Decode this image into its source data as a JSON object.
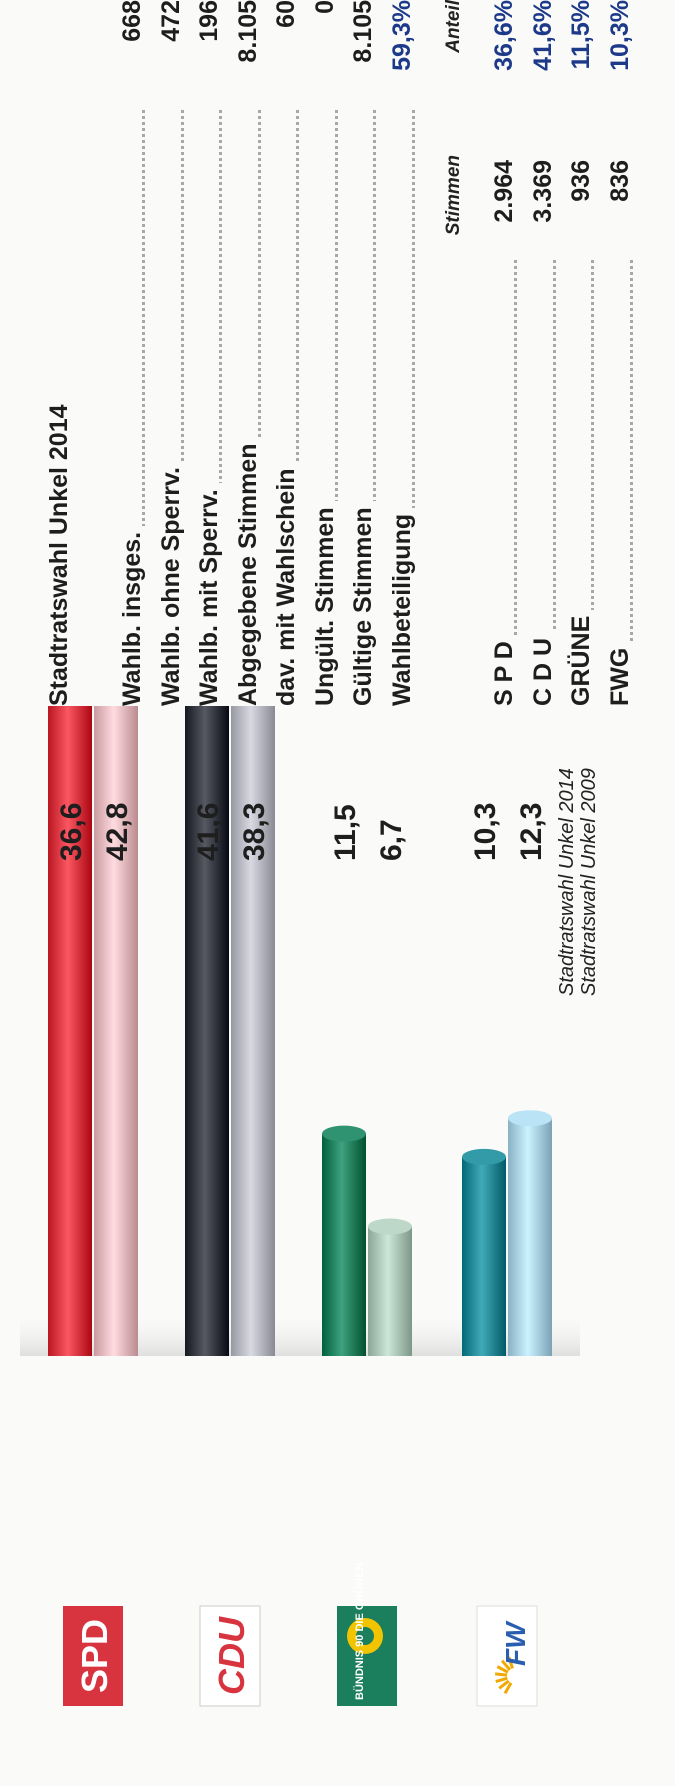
{
  "parties": [
    {
      "name": "SPD",
      "logo_text": "SPD",
      "color_2014": "#d8343f",
      "color_2009": "#e7b8bd",
      "value_2014": 36.6,
      "value_2009": 42.8,
      "label_2014": "36,6",
      "label_2009": "42,8"
    },
    {
      "name": "CDU",
      "logo_text": "CDU",
      "color_2014": "#33363f",
      "color_2009": "#b5b6bf",
      "value_2014": 41.6,
      "value_2009": 38.3,
      "label_2014": "41,6",
      "label_2009": "38,3"
    },
    {
      "name": "GRÜNE",
      "logo_text": "BÜNDNIS 90 DIE GRÜNEN",
      "color_2014": "#1b7e5c",
      "color_2009": "#a9c4b4",
      "value_2014": 11.5,
      "value_2009": 6.7,
      "label_2014": "11,5",
      "label_2009": "6,7"
    },
    {
      "name": "FWG",
      "logo_text": "FW",
      "color_2014": "#1f8794",
      "color_2009": "#a7cfe2",
      "value_2014": 10.3,
      "value_2009": 12.3,
      "label_2014": "10,3",
      "label_2009": "12,3"
    }
  ],
  "chart_data": {
    "type": "bar",
    "categories": [
      "SPD",
      "CDU",
      "GRÜNE",
      "FWG"
    ],
    "series": [
      {
        "name": "Stadtratswahl Unkel 2014",
        "values": [
          36.6,
          41.6,
          11.5,
          10.3
        ]
      },
      {
        "name": "Stadtratswahl Unkel 2009",
        "values": [
          42.8,
          38.3,
          6.7,
          12.3
        ]
      }
    ],
    "value_labels_2014": [
      "36,6",
      "41,6",
      "11,5",
      "10,3"
    ],
    "value_labels_2009": [
      "42,8",
      "38,3",
      "6,7",
      "12,3"
    ],
    "ylim": [
      0,
      45
    ],
    "legend": {
      "label_2014": "Stadtratswahl Unkel 2014",
      "label_2009": "Stadtratswahl Unkel 2009",
      "placement": "bottom-right"
    },
    "grid": false,
    "orientation": "rotated 90° counter-clockwise"
  },
  "table": {
    "title": "Stadtratswahl Unkel 2014",
    "rows": [
      {
        "label": "Wahlb. insges.",
        "value": "668"
      },
      {
        "label": "Wahlb. ohne Sperrv.",
        "value": "472"
      },
      {
        "label": "Wahlb. mit Sperrv.",
        "value": "196"
      },
      {
        "label": "Abgegebene Stimmen",
        "value": "8.105"
      },
      {
        "label": "dav. mit Wahlschein",
        "value": "60"
      },
      {
        "label": "Ungült. Stimmen",
        "value": "0"
      },
      {
        "label": "Gültige Stimmen",
        "value": "8.105"
      },
      {
        "label": "Wahlbeteiligung",
        "value": "59,3%"
      }
    ],
    "col_votes": "Stimmen",
    "col_share": "Anteil",
    "party_rows": [
      {
        "label": "S P D",
        "votes": "2.964",
        "share": "36,6%"
      },
      {
        "label": "C D U",
        "votes": "3.369",
        "share": "41,6%"
      },
      {
        "label": "GRÜNE",
        "votes": "936",
        "share": "11,5%"
      },
      {
        "label": "FWG",
        "votes": "836",
        "share": "10,3%"
      }
    ]
  }
}
